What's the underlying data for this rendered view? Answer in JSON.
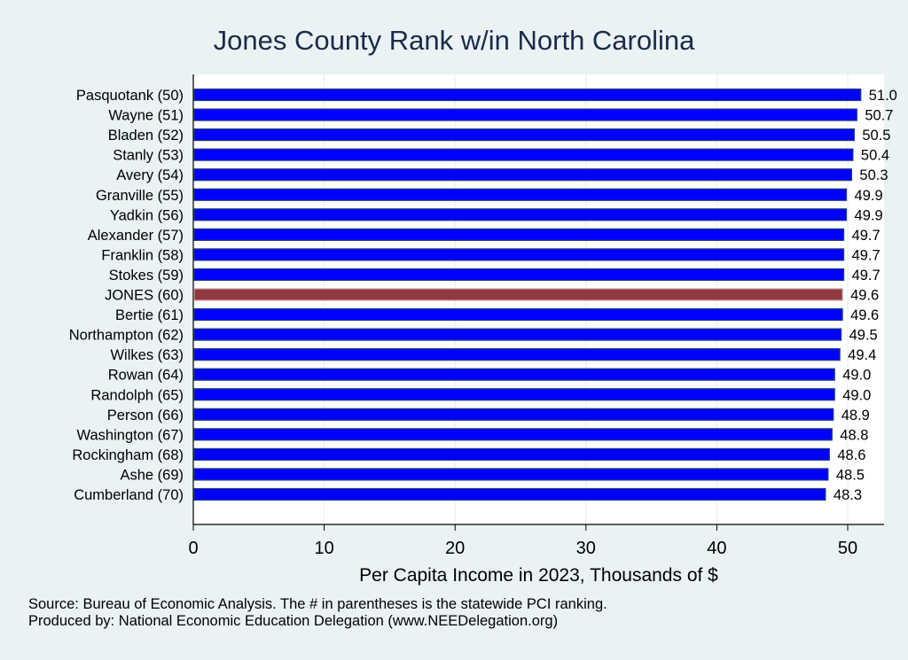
{
  "chart_data": {
    "type": "bar",
    "orientation": "horizontal",
    "title": "Jones County Rank w/in North Carolina",
    "xlabel": "Per Capita Income in 2023, Thousands of $",
    "xlim": [
      0,
      53
    ],
    "xticks": [
      0,
      10,
      20,
      30,
      40,
      50
    ],
    "grid": "vertical",
    "categories": [
      "Pasquotank (50)",
      "Wayne (51)",
      "Bladen (52)",
      "Stanly (53)",
      "Avery (54)",
      "Granville (55)",
      "Yadkin (56)",
      "Alexander (57)",
      "Franklin (58)",
      "Stokes (59)",
      "JONES (60)",
      "Bertie (61)",
      "Northampton (62)",
      "Wilkes (63)",
      "Rowan (64)",
      "Randolph (65)",
      "Person (66)",
      "Washington (67)",
      "Rockingham (68)",
      "Ashe (69)",
      "Cumberland (70)"
    ],
    "values": [
      51.0,
      50.7,
      50.5,
      50.4,
      50.3,
      49.9,
      49.9,
      49.7,
      49.7,
      49.7,
      49.6,
      49.6,
      49.5,
      49.4,
      49.0,
      49.0,
      48.9,
      48.8,
      48.6,
      48.5,
      48.3
    ],
    "labels": [
      "51.0",
      "50.7",
      "50.5",
      "50.4",
      "50.3",
      "49.9",
      "49.9",
      "49.7",
      "49.7",
      "49.7",
      "49.6",
      "49.6",
      "49.5",
      "49.4",
      "49.0",
      "49.0",
      "48.9",
      "48.8",
      "48.6",
      "48.5",
      "48.3"
    ],
    "highlight": "JONES (60)",
    "colors": {
      "bar": "#0000ff",
      "highlight": "#8f3a3f",
      "border": "#1f3f7f",
      "background": "#eaf2f3",
      "plot": "#ffffff"
    }
  },
  "footer": {
    "source": "Source: Bureau of Economic Analysis. The # in parentheses is the statewide PCI ranking.",
    "produced": "Produced by: National Economic Education Delegation (www.NEEDelegation.org)"
  }
}
